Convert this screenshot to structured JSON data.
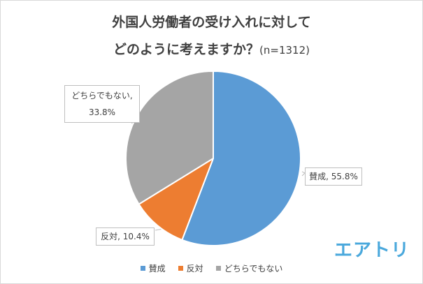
{
  "title": {
    "line1": "外国人労働者の受け入れに対して",
    "line2": "どのように考えますか？",
    "sample_size": "(n=1312)"
  },
  "labels": {
    "yes": "賛成, 55.8%",
    "no": "反対, 10.4%",
    "undecided_line1": "どちらでもない,",
    "undecided_line2": "33.8%"
  },
  "legend": [
    {
      "label": "賛成",
      "color": "#5b9bd5"
    },
    {
      "label": "反対",
      "color": "#ed7d31"
    },
    {
      "label": "どちらでもない",
      "color": "#a5a5a5"
    }
  ],
  "logo": "エアトリ",
  "chart_data": {
    "type": "pie",
    "title": "外国人労働者の受け入れに対して どのように考えますか？(n=1312)",
    "categories": [
      "賛成",
      "反対",
      "どちらでもない"
    ],
    "values": [
      55.8,
      10.4,
      33.8
    ],
    "unit": "%",
    "colors": [
      "#5b9bd5",
      "#ed7d31",
      "#a5a5a5"
    ],
    "legend_position": "bottom",
    "sample_size": 1312
  }
}
